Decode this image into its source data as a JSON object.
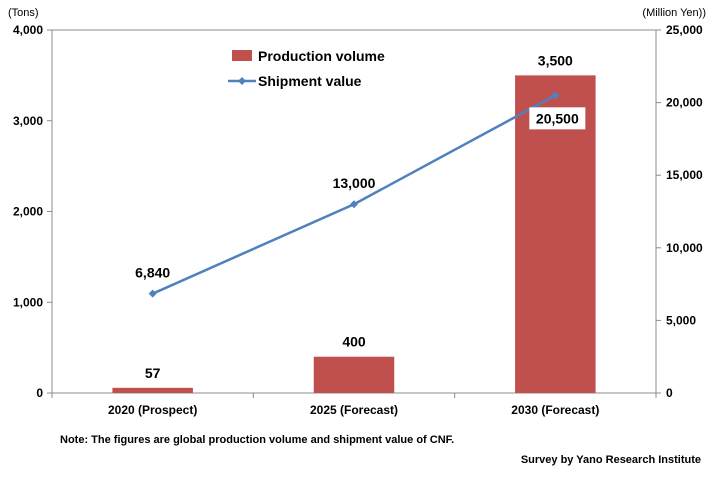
{
  "chart_data": {
    "type": "bar+line",
    "categories": [
      "2020 (Prospect)",
      "2025 (Forecast)",
      "2030 (Forecast)"
    ],
    "series": [
      {
        "name": "Production volume",
        "type": "bar",
        "axis": "left",
        "values": [
          57,
          400,
          3500
        ],
        "labels": [
          "57",
          "400",
          "3,500"
        ],
        "color": "#C0504D"
      },
      {
        "name": "Shipment value",
        "type": "line",
        "axis": "right",
        "values": [
          6840,
          13000,
          20500
        ],
        "labels": [
          "6,840",
          "13,000",
          "20,500"
        ],
        "color": "#4F81BD"
      }
    ],
    "y_left": {
      "unit": "(Tons)",
      "ylim": [
        0,
        4000
      ],
      "ticks": [
        0,
        1000,
        2000,
        3000,
        4000
      ],
      "tick_labels": [
        "0",
        "1,000",
        "2,000",
        "3,000",
        "4,000"
      ]
    },
    "y_right": {
      "unit": "(Million Yen))",
      "ylim": [
        0,
        25000
      ],
      "ticks": [
        0,
        5000,
        10000,
        15000,
        20000,
        25000
      ],
      "tick_labels": [
        "0",
        "5,000",
        "10,000",
        "15,000",
        "20,000",
        "25,000"
      ]
    },
    "legend": {
      "placement": "top-left-inside"
    },
    "grid": false
  },
  "footer": {
    "note": "Note: The figures are global production volume and shipment value of CNF.",
    "source": "Survey by Yano Research Institute"
  }
}
